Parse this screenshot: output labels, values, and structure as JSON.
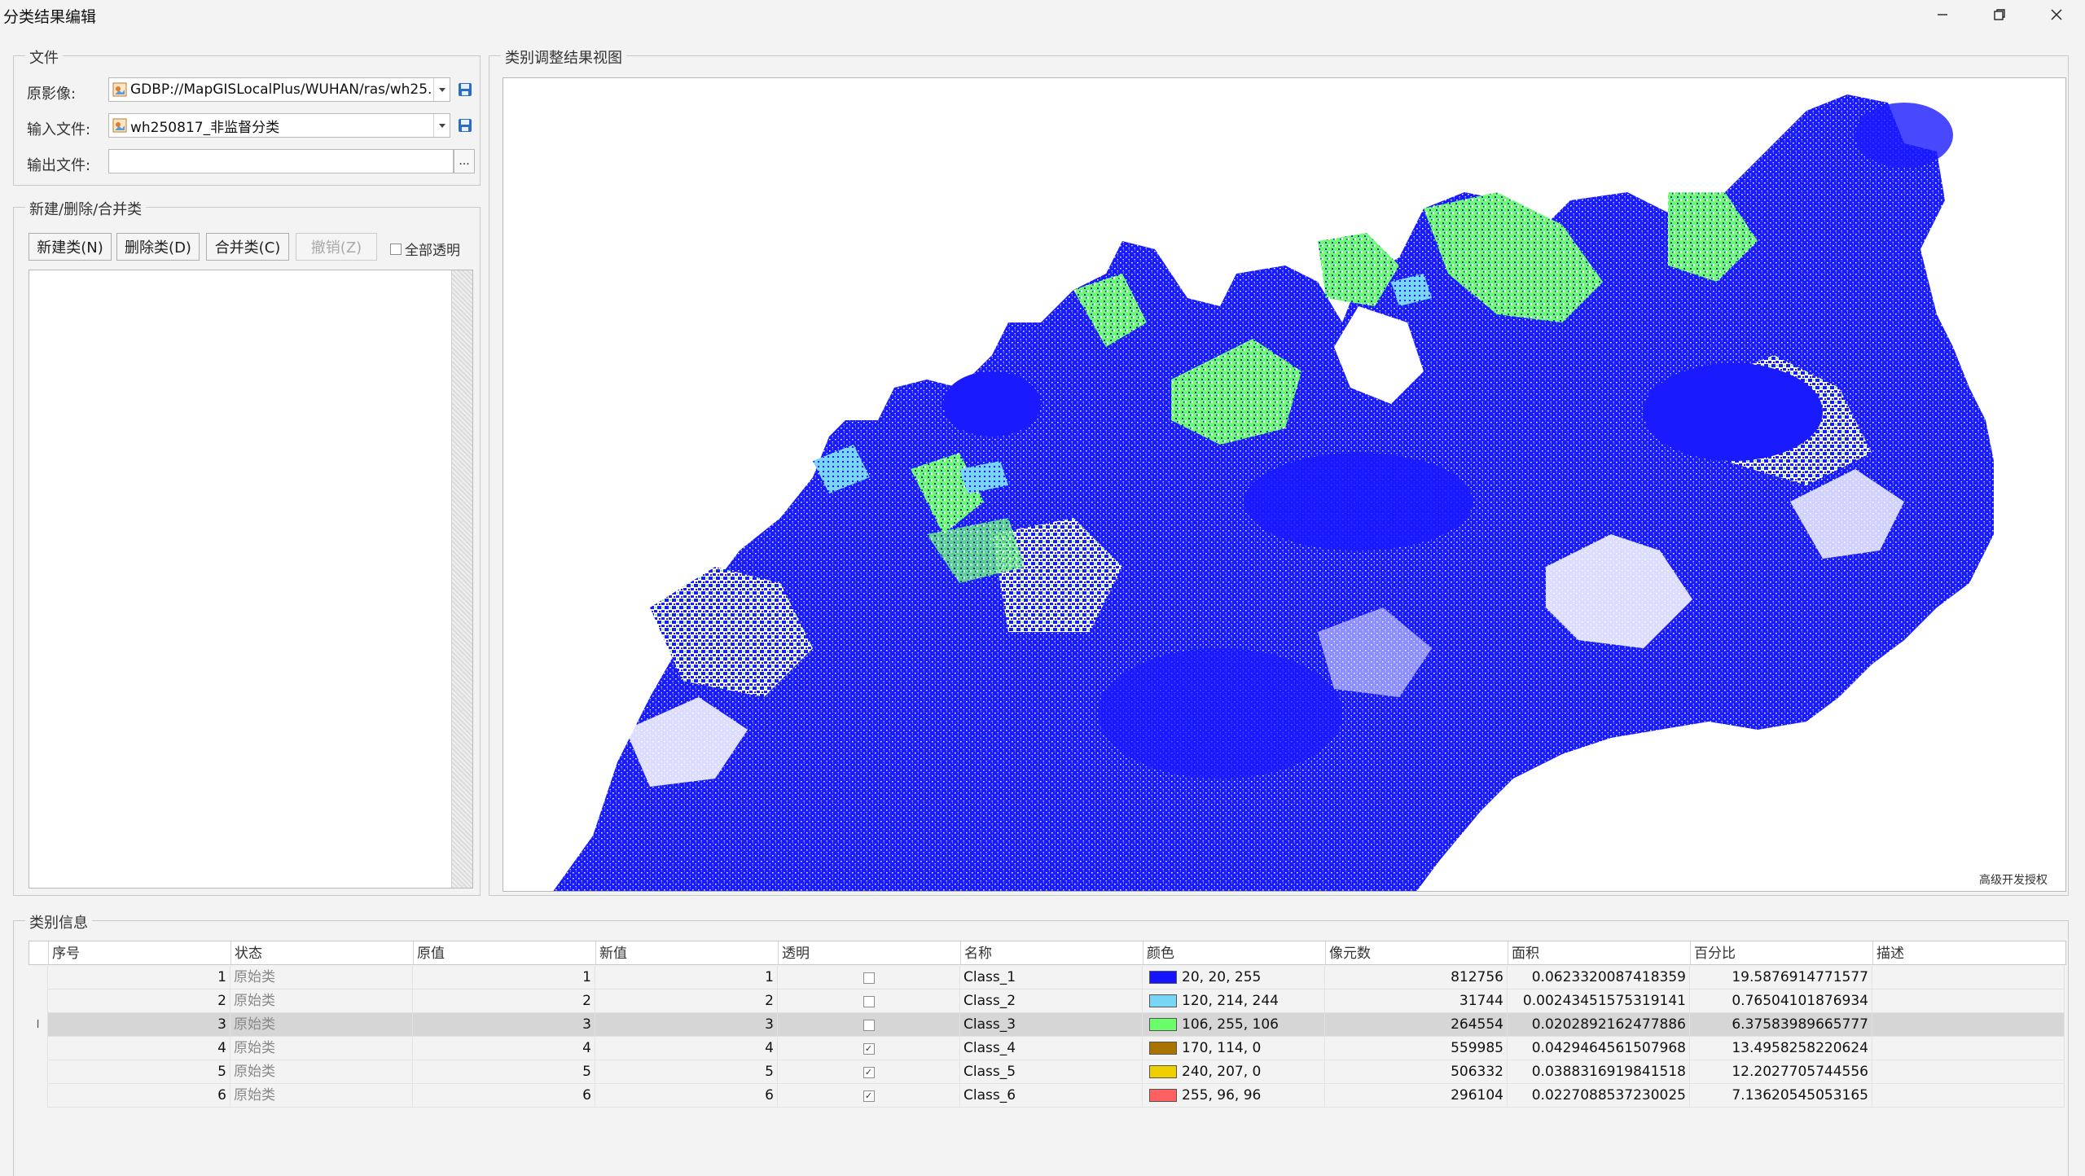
{
  "window": {
    "title": "分类结果编辑"
  },
  "file_group": {
    "legend": "文件",
    "source_label": "原影像:",
    "source_value": "GDBP://MapGISLocalPlus/WUHAN/ras/wh25...",
    "input_label": "输入文件:",
    "input_value": "wh250817_非监督分类",
    "output_label": "输出文件:",
    "output_value": "",
    "browse_label": "..."
  },
  "class_ops": {
    "legend": "新建/删除/合并类",
    "new_button": "新建类(N)",
    "delete_button": "删除类(D)",
    "merge_button": "合并类(C)",
    "undo_button": "撤销(Z)",
    "all_transparent_label": "全部透明"
  },
  "view": {
    "legend": "类别调整结果视图",
    "watermark": "高级开发授权"
  },
  "class_info": {
    "legend": "类别信息",
    "columns": [
      "序号",
      "状态",
      "原值",
      "新值",
      "透明",
      "名称",
      "颜色",
      "像元数",
      "面积",
      "百分比",
      "描述"
    ],
    "rows": [
      {
        "index": "1",
        "state": "原始类",
        "orig": "1",
        "new": "1",
        "transparent": false,
        "name": "Class_1",
        "color_text": "20, 20, 255",
        "color_hex": "#1414ff",
        "pixels": "812756",
        "area": "0.0623320087418359",
        "percent": "19.5876914771577",
        "desc": ""
      },
      {
        "index": "2",
        "state": "原始类",
        "orig": "2",
        "new": "2",
        "transparent": false,
        "name": "Class_2",
        "color_text": "120, 214, 244",
        "color_hex": "#78d6f4",
        "pixels": "31744",
        "area": "0.00243451575319141",
        "percent": "0.76504101876934",
        "desc": ""
      },
      {
        "index": "3",
        "state": "原始类",
        "orig": "3",
        "new": "3",
        "transparent": false,
        "name": "Class_3",
        "color_text": "106, 255, 106",
        "color_hex": "#6aff6a",
        "pixels": "264554",
        "area": "0.0202892162477886",
        "percent": "6.37583989665777",
        "desc": "",
        "selected": true
      },
      {
        "index": "4",
        "state": "原始类",
        "orig": "4",
        "new": "4",
        "transparent": true,
        "name": "Class_4",
        "color_text": "170, 114, 0",
        "color_hex": "#aa7200",
        "pixels": "559985",
        "area": "0.0429464561507968",
        "percent": "13.4958258220624",
        "desc": ""
      },
      {
        "index": "5",
        "state": "原始类",
        "orig": "5",
        "new": "5",
        "transparent": true,
        "name": "Class_5",
        "color_text": "240, 207, 0",
        "color_hex": "#f0cf00",
        "pixels": "506332",
        "area": "0.0388316919841518",
        "percent": "12.2027705744556",
        "desc": ""
      },
      {
        "index": "6",
        "state": "原始类",
        "orig": "6",
        "new": "6",
        "transparent": true,
        "name": "Class_6",
        "color_text": "255, 96, 96",
        "color_hex": "#ff6060",
        "pixels": "296104",
        "area": "0.0227088537230025",
        "percent": "7.13620545053165",
        "desc": ""
      }
    ]
  }
}
